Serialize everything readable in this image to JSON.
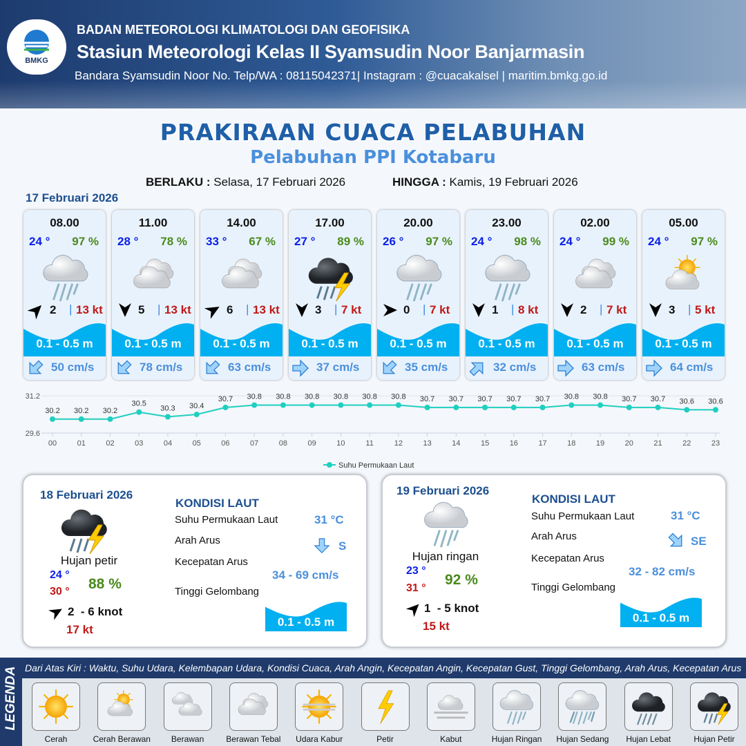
{
  "header": {
    "logo_text": "BMKG",
    "agency": "BADAN METEOROLOGI KLIMATOLOGI DAN GEOFISIKA",
    "station": "Stasiun Meteorologi Kelas II Syamsudin Noor Banjarmasin",
    "contact": "Bandara Syamsudin Noor No. Telp/WA : 08115042371| Instagram : @cuacakalsel | maritim.bmkg.go.id"
  },
  "title": "PRAKIRAAN CUACA PELABUHAN",
  "subtitle": "Pelabuhan PPI Kotabaru",
  "validity": {
    "from_label": "BERLAKU :",
    "from": "Selasa, 17 Februari 2026",
    "to_label": "HINGGA :",
    "to": "Kamis, 19 Februari 2026"
  },
  "day1": {
    "date": "17 Februari 2026",
    "cards": [
      {
        "time": "08.00",
        "temp": "24 °",
        "hum": "97 %",
        "icon": "hujan-ringan",
        "wind_dir_deg": 45,
        "wind": "2",
        "gust": "13 kt",
        "wave": "0.1 - 0.5 m",
        "current_dir_deg": 225,
        "current": "50 cm/s"
      },
      {
        "time": "11.00",
        "temp": "28 °",
        "hum": "78 %",
        "icon": "berawan-tebal",
        "wind_dir_deg": 180,
        "wind": "5",
        "gust": "13 kt",
        "wave": "0.1 - 0.5 m",
        "current_dir_deg": 225,
        "current": "78 cm/s"
      },
      {
        "time": "14.00",
        "temp": "33 °",
        "hum": "67 %",
        "icon": "berawan-tebal",
        "wind_dir_deg": 60,
        "wind": "6",
        "gust": "13 kt",
        "wave": "0.1 - 0.5 m",
        "current_dir_deg": 225,
        "current": "63 cm/s"
      },
      {
        "time": "17.00",
        "temp": "27 °",
        "hum": "89 %",
        "icon": "hujan-petir",
        "wind_dir_deg": 180,
        "wind": "3",
        "gust": "7 kt",
        "wave": "0.1 - 0.5 m",
        "current_dir_deg": 90,
        "current": "37 cm/s"
      },
      {
        "time": "20.00",
        "temp": "26 °",
        "hum": "97 %",
        "icon": "hujan-ringan",
        "wind_dir_deg": 90,
        "wind": "0",
        "gust": "7 kt",
        "wave": "0.1 - 0.5 m",
        "current_dir_deg": 225,
        "current": "35 cm/s"
      },
      {
        "time": "23.00",
        "temp": "24 °",
        "hum": "98 %",
        "icon": "hujan-ringan",
        "wind_dir_deg": 180,
        "wind": "1",
        "gust": "8 kt",
        "wave": "0.1 - 0.5 m",
        "current_dir_deg": 45,
        "current": "32 cm/s"
      },
      {
        "time": "02.00",
        "temp": "24 °",
        "hum": "99 %",
        "icon": "berawan-tebal",
        "wind_dir_deg": 180,
        "wind": "2",
        "gust": "7 kt",
        "wave": "0.1 - 0.5 m",
        "current_dir_deg": 90,
        "current": "63 cm/s"
      },
      {
        "time": "05.00",
        "temp": "24 °",
        "hum": "97 %",
        "icon": "cerah-berawan",
        "wind_dir_deg": 180,
        "wind": "3",
        "gust": "5 kt",
        "wave": "0.1 - 0.5 m",
        "current_dir_deg": 90,
        "current": "64 cm/s"
      }
    ]
  },
  "chart_data": {
    "type": "line",
    "x": [
      "00",
      "01",
      "02",
      "03",
      "04",
      "05",
      "06",
      "07",
      "08",
      "09",
      "10",
      "11",
      "12",
      "13",
      "14",
      "15",
      "16",
      "17",
      "18",
      "19",
      "20",
      "21",
      "22",
      "23"
    ],
    "series": [
      {
        "name": "Suhu Permukaan Laut",
        "values": [
          30.2,
          30.2,
          30.2,
          30.5,
          30.3,
          30.4,
          30.7,
          30.8,
          30.8,
          30.8,
          30.8,
          30.8,
          30.8,
          30.7,
          30.7,
          30.7,
          30.7,
          30.7,
          30.8,
          30.8,
          30.7,
          30.7,
          30.6,
          30.6
        ]
      }
    ],
    "ylim": [
      29.6,
      31.2
    ],
    "yticks": [
      "31.2",
      "29.6"
    ],
    "legend": "bottom",
    "color": "#1fcfc0",
    "grid": true
  },
  "day2": {
    "date": "18 Februari 2026",
    "condition": "Hujan petir",
    "icon": "hujan-petir",
    "tmin": "24 °",
    "tmax": "30 °",
    "hum": "88 %",
    "wind_dir_deg": 60,
    "wind": "2  - 6 knot",
    "gust": "17 kt",
    "sea": {
      "title": "KONDISI LAUT",
      "sst_label": "Suhu Permukaan Laut",
      "sst": "31 °C",
      "dir_label": "Arah Arus",
      "dir": "S",
      "current_dir_deg": 180,
      "speed_label": "Kecepatan Arus",
      "speed": "34 - 69 cm/s",
      "wave_label": "Tinggi Gelombang",
      "wave": "0.1 - 0.5 m"
    }
  },
  "day3": {
    "date": "19 Februari 2026",
    "condition": "Hujan ringan",
    "icon": "hujan-ringan",
    "tmin": "23 °",
    "tmax": "31 °",
    "hum": "92 %",
    "wind_dir_deg": 45,
    "wind": "1  - 5 knot",
    "gust": "15 kt",
    "sea": {
      "title": "KONDISI LAUT",
      "sst_label": "Suhu Permukaan Laut",
      "sst": "31 °C",
      "dir_label": "Arah Arus",
      "dir": "SE",
      "current_dir_deg": 135,
      "speed_label": "Kecepatan Arus",
      "speed": "32 - 82 cm/s",
      "wave_label": "Tinggi Gelombang",
      "wave": "0.1 - 0.5 m"
    }
  },
  "legend": {
    "title": "LEGENDA",
    "description": "Dari Atas Kiri : Waktu, Suhu Udara, Kelembapan Udara, Kondisi Cuaca, Arah Angin, Kecepatan Angin, Kecepatan Gust, Tinggi Gelombang, Arah Arus, Kecepatan Arus",
    "items": [
      {
        "label": "Cerah",
        "icon": "cerah"
      },
      {
        "label": "Cerah Berawan",
        "icon": "cerah-berawan"
      },
      {
        "label": "Berawan",
        "icon": "berawan"
      },
      {
        "label": "Berawan Tebal",
        "icon": "berawan-tebal"
      },
      {
        "label": "Udara Kabur",
        "icon": "udara-kabur"
      },
      {
        "label": "Petir",
        "icon": "petir"
      },
      {
        "label": "Kabut",
        "icon": "kabut"
      },
      {
        "label": "Hujan Ringan",
        "icon": "hujan-ringan"
      },
      {
        "label": "Hujan Sedang",
        "icon": "hujan-sedang"
      },
      {
        "label": "Hujan Lebat",
        "icon": "hujan-lebat"
      },
      {
        "label": "Hujan Petir",
        "icon": "hujan-petir"
      }
    ]
  },
  "colors": {
    "brand": "#1f3a6b",
    "title": "#1f5fa8",
    "wave": "#00b0f0",
    "temp": "#0a1ee8",
    "humidity": "#4a8a1c",
    "gust": "#c01818"
  }
}
